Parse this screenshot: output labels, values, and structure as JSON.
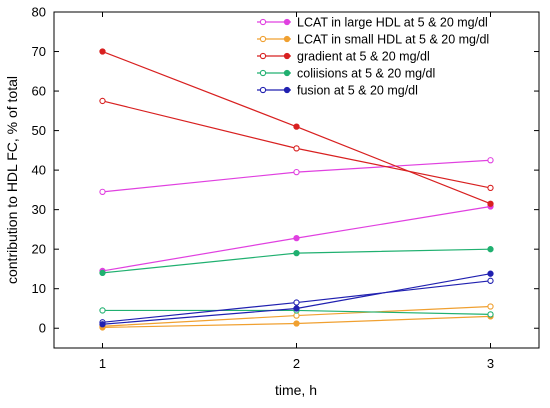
{
  "chart_data": {
    "type": "line",
    "x": [
      1,
      2,
      3
    ],
    "xlabel": "time, h",
    "ylabel": "contribution to HDL FC, % of total",
    "xlim": [
      0.75,
      3.25
    ],
    "ylim": [
      -5,
      80
    ],
    "xticks": [
      "1",
      "2",
      "3"
    ],
    "yticks": [
      "0",
      "10",
      "20",
      "30",
      "40",
      "50",
      "60",
      "70",
      "80"
    ],
    "grid": false,
    "legend_position": "top-right",
    "legend": [
      "LCAT in large HDL at 5 & 20 mg/dl",
      "LCAT in small HDL at 5 & 20 mg/dl",
      "gradient at 5 & 20 mg/dl",
      "coliisions at 5 & 20 mg/dl",
      "fusion at 5 & 20 mg/dl"
    ],
    "series": [
      {
        "group": 0,
        "marker": "open",
        "color": "#e040e0",
        "values": [
          34.5,
          39.5,
          42.5
        ]
      },
      {
        "group": 0,
        "marker": "filled",
        "color": "#e040e0",
        "values": [
          14.5,
          22.8,
          30.8
        ]
      },
      {
        "group": 1,
        "marker": "open",
        "color": "#f0a030",
        "values": [
          0.5,
          3.2,
          5.5
        ]
      },
      {
        "group": 1,
        "marker": "filled",
        "color": "#f0a030",
        "values": [
          0.2,
          1.2,
          3.0
        ]
      },
      {
        "group": 2,
        "marker": "open",
        "color": "#d82020",
        "values": [
          57.5,
          45.5,
          35.5
        ]
      },
      {
        "group": 2,
        "marker": "filled",
        "color": "#d82020",
        "values": [
          70.0,
          51.0,
          31.5
        ]
      },
      {
        "group": 3,
        "marker": "open",
        "color": "#20b070",
        "values": [
          4.5,
          4.5,
          3.5
        ]
      },
      {
        "group": 3,
        "marker": "filled",
        "color": "#20b070",
        "values": [
          14.0,
          19.0,
          20.0
        ]
      },
      {
        "group": 4,
        "marker": "open",
        "color": "#2020b0",
        "values": [
          1.5,
          6.5,
          12.0
        ]
      },
      {
        "group": 4,
        "marker": "filled",
        "color": "#2020b0",
        "values": [
          1.0,
          5.0,
          13.8
        ]
      }
    ]
  }
}
